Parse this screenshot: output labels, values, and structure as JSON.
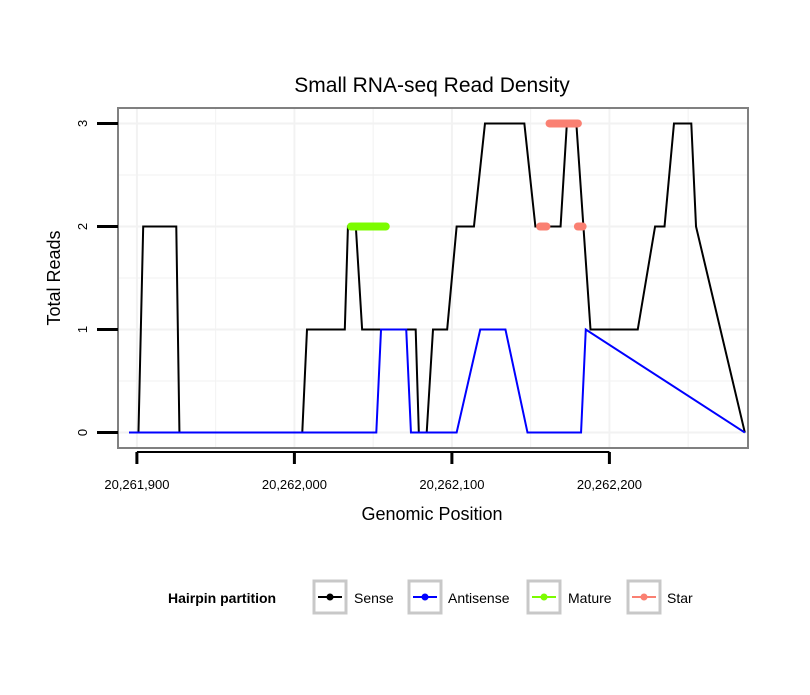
{
  "chart_data": {
    "type": "line",
    "title": "Small RNA-seq Read Density",
    "xlabel": "Genomic Position",
    "ylabel": "Total Reads",
    "xlim": [
      20261888,
      20262288
    ],
    "ylim": [
      -0.15,
      3.15
    ],
    "x_ticks": [
      20261900,
      20262000,
      20262100,
      20262200
    ],
    "x_tick_labels": [
      "20,261,900",
      "20,262,000",
      "20,262,100",
      "20,262,200"
    ],
    "y_ticks": [
      0,
      1,
      2,
      3
    ],
    "y_tick_labels": [
      "0",
      "1",
      "2",
      "3"
    ],
    "legend": {
      "title": "Hairpin partition",
      "position": "bottom",
      "entries": [
        "Sense",
        "Antisense",
        "Mature",
        "Star"
      ]
    },
    "colors": {
      "sense": "#000000",
      "antisense": "#0000ff",
      "mature": "#7cfc00",
      "star": "#fa8072",
      "panel_border": "#808080",
      "grid": "#f2f2f2"
    },
    "series": [
      {
        "name": "Sense",
        "color": "#000000",
        "x": [
          20261895,
          20261901,
          20261904,
          20261925,
          20261927,
          20262005,
          20262008,
          20262032,
          20262034,
          20262039,
          20262043,
          20262077,
          20262079,
          20262084,
          20262088,
          20262097,
          20262103,
          20262114,
          20262121,
          20262146,
          20262153,
          20262169,
          20262173,
          20262179,
          20262188,
          20262218,
          20262229,
          20262235,
          20262241,
          20262252,
          20262255,
          20262286
        ],
        "y": [
          0,
          0,
          2,
          2,
          0,
          0,
          1,
          1,
          2,
          2,
          1,
          1,
          0,
          0,
          1,
          1,
          2,
          2,
          3,
          3,
          2,
          2,
          3,
          3,
          1,
          1,
          2,
          2,
          3,
          3,
          2,
          0
        ]
      },
      {
        "name": "Antisense",
        "color": "#0000ff",
        "x": [
          20261895,
          20262052,
          20262055,
          20262071,
          20262074,
          20262103,
          20262118,
          20262134,
          20262148,
          20262182,
          20262185,
          20262286
        ],
        "y": [
          0,
          0,
          1,
          1,
          0,
          0,
          1,
          1,
          0,
          0,
          1,
          0
        ]
      },
      {
        "name": "Mature",
        "color": "#7cfc00",
        "segments": [
          {
            "x_start": 20262036,
            "x_end": 20262058,
            "y": 2
          }
        ]
      },
      {
        "name": "Star",
        "color": "#fa8072",
        "segments": [
          {
            "x_start": 20262156,
            "x_end": 20262160,
            "y": 2
          },
          {
            "x_start": 20262162,
            "x_end": 20262180,
            "y": 3
          },
          {
            "x_start": 20262180,
            "x_end": 20262183,
            "y": 2
          }
        ]
      }
    ]
  }
}
